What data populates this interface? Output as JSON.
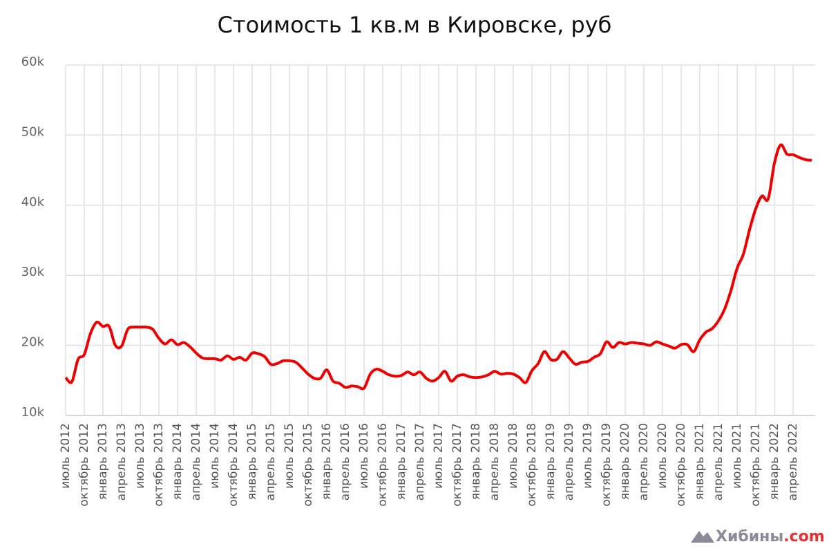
{
  "chart_data": {
    "type": "line",
    "title": "Стоимость 1 кв.м в Кировске, руб",
    "categories": [
      "июль 2012",
      null,
      null,
      "октябрь 2012",
      null,
      null,
      "январь 2013",
      null,
      null,
      "апрель 2013",
      null,
      null,
      "июль 2013",
      null,
      null,
      "октябрь 2013",
      null,
      null,
      "январь 2014",
      null,
      null,
      "апрель 2014",
      null,
      null,
      "июль 2014",
      null,
      null,
      "октябрь 2014",
      null,
      null,
      "январь 2015",
      null,
      null,
      "апрель 2015",
      null,
      null,
      "июль 2015",
      null,
      null,
      "октябрь 2015",
      null,
      null,
      "январь 2016",
      null,
      null,
      "апрель 2016",
      null,
      null,
      "июль 2016",
      null,
      null,
      "октябрь 2016",
      null,
      null,
      "январь 2017",
      null,
      null,
      "апрель 2017",
      null,
      null,
      "июль 2017",
      null,
      null,
      "октябрь 2017",
      null,
      null,
      "январь 2018",
      null,
      null,
      "апрель 2018",
      null,
      null,
      "июль 2018",
      null,
      null,
      "октябрь 2018",
      null,
      null,
      "январь 2019",
      null,
      null,
      "апрель 2019",
      null,
      null,
      "июль 2019",
      null,
      null,
      "октябрь 2019",
      null,
      null,
      "январь 2020",
      null,
      null,
      "апрель 2020",
      null,
      null,
      "июль 2020",
      null,
      null,
      "октябрь 2020",
      null,
      null,
      "январь 2021",
      null,
      null,
      "апрель 2021",
      null,
      null,
      "июль 2021",
      null,
      null,
      "октябрь 2021",
      null,
      null,
      "январь 2022",
      null,
      null,
      "апрель 2022",
      null,
      null,
      null
    ],
    "series": [
      {
        "color": "#ee0000",
        "values": [
          15400,
          14800,
          18000,
          18700,
          21700,
          23300,
          22700,
          22700,
          20000,
          19900,
          22300,
          22600,
          22600,
          22600,
          22300,
          21000,
          20200,
          20800,
          20100,
          20400,
          19800,
          18900,
          18200,
          18100,
          18100,
          17900,
          18500,
          18000,
          18300,
          17900,
          18900,
          18800,
          18400,
          17300,
          17400,
          17800,
          17800,
          17600,
          16800,
          15900,
          15300,
          15300,
          16500,
          14900,
          14600,
          14000,
          14200,
          14100,
          13900,
          15900,
          16600,
          16300,
          15800,
          15600,
          15700,
          16200,
          15800,
          16200,
          15300,
          14900,
          15400,
          16300,
          14900,
          15600,
          15800,
          15500,
          15400,
          15500,
          15800,
          16300,
          15900,
          16000,
          15900,
          15400,
          14700,
          16400,
          17400,
          19100,
          18000,
          18000,
          19100,
          18200,
          17300,
          17600,
          17700,
          18300,
          18800,
          20500,
          19700,
          20400,
          20200,
          20400,
          20300,
          20200,
          20000,
          20500,
          20200,
          19900,
          19600,
          20100,
          20100,
          19100,
          20800,
          21900,
          22400,
          23500,
          25200,
          27800,
          31000,
          33000,
          36500,
          39500,
          41300,
          40900,
          46000,
          48600,
          47300,
          47200,
          46800,
          46500,
          46400
        ]
      }
    ],
    "ylim": [
      10000,
      60000
    ],
    "yticks": [
      {
        "value": 10000,
        "label": "10k"
      },
      {
        "value": 20000,
        "label": "20k"
      },
      {
        "value": 30000,
        "label": "30k"
      },
      {
        "value": 40000,
        "label": "40k"
      },
      {
        "value": 50000,
        "label": "50k"
      },
      {
        "value": 60000,
        "label": "60k"
      }
    ],
    "grid": true
  },
  "watermark": {
    "name": "Хибины",
    "domain": ".com"
  }
}
